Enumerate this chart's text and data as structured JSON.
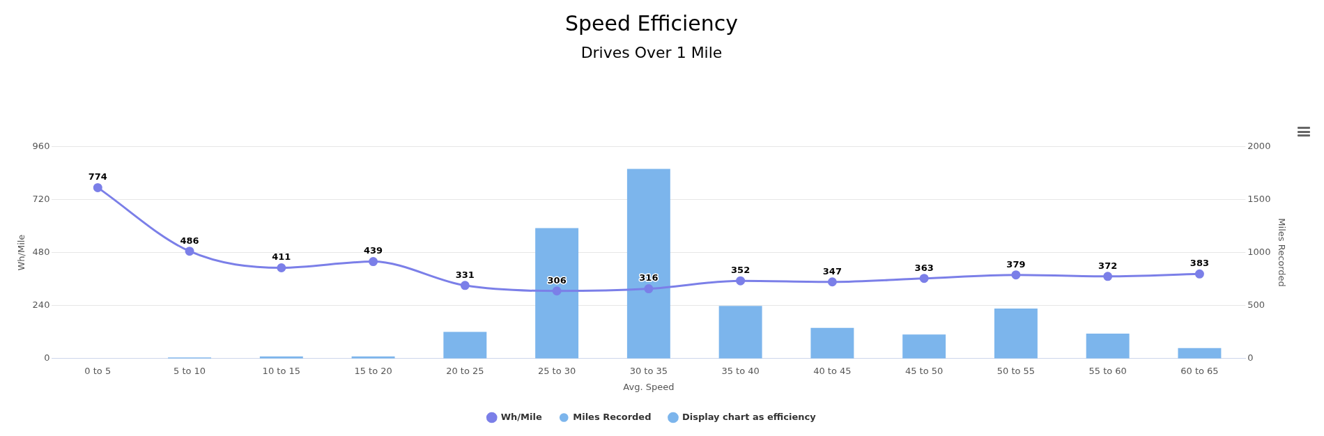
{
  "chart_data": {
    "type": "bar",
    "title": "Speed Efficiency",
    "subtitle": "Drives Over 1 Mile",
    "xlabel": "Avg. Speed",
    "ylabel": "Wh/Mile",
    "y2label": "Miles Recorded",
    "categories": [
      "0 to 5",
      "5 to 10",
      "10 to 15",
      "15 to 20",
      "20 to 25",
      "25 to 30",
      "30 to 35",
      "35 to 40",
      "40 to 45",
      "45 to 50",
      "50 to 55",
      "55 to 60",
      "60 to 65"
    ],
    "series": [
      {
        "name": "Wh/Mile",
        "type": "line",
        "color": "#7b7fe8",
        "values": [
          774,
          486,
          411,
          439,
          331,
          306,
          316,
          352,
          347,
          363,
          379,
          372,
          383
        ],
        "value_labels": [
          "774",
          "486",
          "411",
          "439",
          "331",
          "306",
          "316",
          "352",
          "347",
          "363",
          "379",
          "372",
          "383"
        ]
      },
      {
        "name": "Miles Recorded",
        "axis": "y2",
        "color": "#7cb5ec",
        "values": [
          0,
          10,
          20,
          20,
          252,
          1231,
          1789,
          496,
          289,
          227,
          471,
          236,
          99
        ]
      },
      {
        "name": "Display chart as efficiency",
        "type": "line",
        "color": "#7cb5ec",
        "values": [
          null,
          null,
          null,
          null,
          null,
          null,
          null,
          null,
          null,
          null,
          null,
          null,
          null
        ]
      }
    ],
    "ylim": [
      0,
      960
    ],
    "yticks": [
      0,
      240,
      480,
      720,
      960
    ],
    "y2lim": [
      0,
      2000
    ],
    "y2ticks": [
      0,
      500,
      1000,
      1500,
      2000
    ],
    "grid": "y",
    "legend": "bottom",
    "marker": "circle",
    "line_style": "solid"
  }
}
